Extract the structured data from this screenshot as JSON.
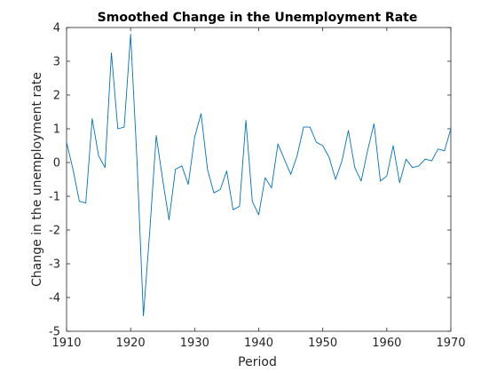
{
  "chart_data": {
    "type": "line",
    "title": "Smoothed Change in the Unemployment Rate",
    "xlabel": "Period",
    "ylabel": "Change in the unemployment rate",
    "xlim": [
      1910,
      1970
    ],
    "ylim": [
      -5,
      4
    ],
    "xticks": [
      "1910",
      "1920",
      "1930",
      "1940",
      "1950",
      "1960",
      "1970"
    ],
    "yticks": [
      "-5",
      "-4",
      "-3",
      "-2",
      "-1",
      "0",
      "1",
      "2",
      "3",
      "4"
    ],
    "grid": false,
    "line_color": "#0072BD",
    "series": [
      {
        "x": [
          1910,
          1911,
          1912,
          1913,
          1914,
          1915,
          1916,
          1917,
          1918,
          1919,
          1920,
          1921,
          1922,
          1923,
          1924,
          1925,
          1926,
          1927,
          1928,
          1929,
          1930,
          1931,
          1932,
          1933,
          1934,
          1935,
          1936,
          1937,
          1938,
          1939,
          1940,
          1941,
          1942,
          1943,
          1944,
          1945,
          1946,
          1947,
          1948,
          1949,
          1950,
          1951,
          1952,
          1953,
          1954,
          1955,
          1956,
          1957,
          1958,
          1959,
          1960,
          1961,
          1962,
          1963,
          1964,
          1965,
          1966,
          1967,
          1968,
          1969,
          1970
        ],
        "values": [
          0.6,
          -0.2,
          -1.15,
          -1.2,
          1.3,
          0.2,
          -0.15,
          3.25,
          1.0,
          1.05,
          3.8,
          0.05,
          -4.55,
          -2.0,
          0.8,
          -0.5,
          -1.7,
          -0.2,
          -0.1,
          -0.65,
          0.75,
          1.45,
          -0.2,
          -0.9,
          -0.8,
          -0.25,
          -1.4,
          -1.3,
          1.25,
          -1.15,
          -1.55,
          -0.45,
          -0.75,
          0.55,
          0.1,
          -0.35,
          0.2,
          1.05,
          1.05,
          0.6,
          0.5,
          0.15,
          -0.5,
          0.05,
          0.95,
          -0.15,
          -0.55,
          0.35,
          1.15,
          -0.55,
          -0.4,
          0.5,
          -0.6,
          0.1,
          -0.15,
          -0.1,
          0.1,
          0.05,
          0.4,
          0.35,
          1.0
        ]
      }
    ]
  }
}
